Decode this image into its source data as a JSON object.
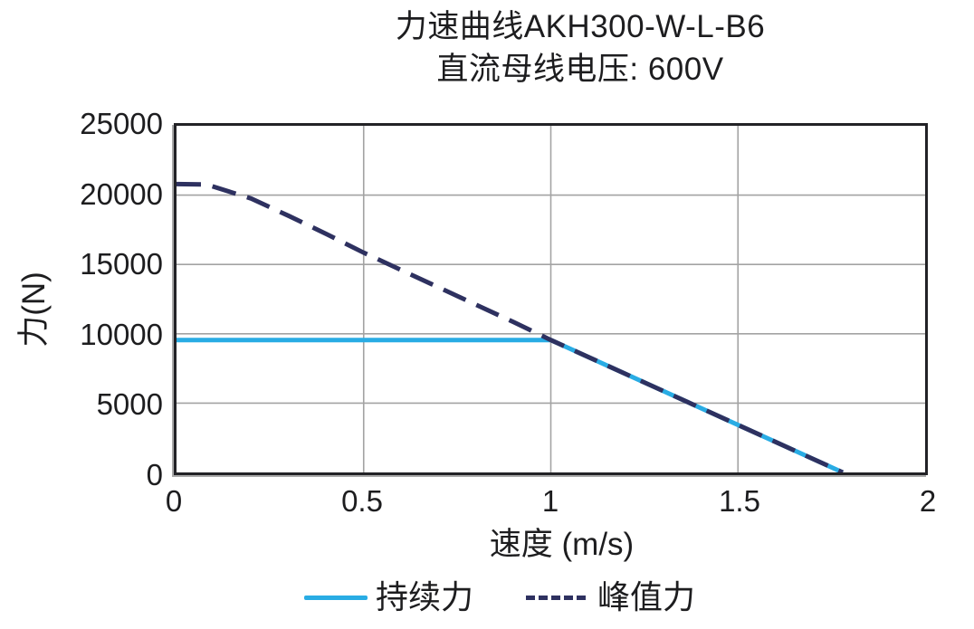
{
  "title": {
    "line1": "力速曲线AKH300-W-L-B6",
    "line2": "直流母线电压: 600V"
  },
  "axes": {
    "x": {
      "label": "速度 (m/s)",
      "tick_labels": [
        "0",
        "0.5",
        "1",
        "1.5",
        "2"
      ],
      "tick_values": [
        0,
        0.5,
        1,
        1.5,
        2
      ],
      "min": 0,
      "max": 2
    },
    "y": {
      "label": "力(N)",
      "tick_labels": [
        "0",
        "5000",
        "10000",
        "15000",
        "20000",
        "25000"
      ],
      "tick_values": [
        0,
        5000,
        10000,
        15000,
        20000,
        25000
      ],
      "min": 0,
      "max": 25000
    }
  },
  "legend": {
    "items": [
      {
        "label": "持续力",
        "color": "#29ace4",
        "style": "solid"
      },
      {
        "label": "峰值力",
        "color": "#2e3160",
        "style": "dashed"
      }
    ]
  },
  "colors": {
    "continuous_force": "#29ace4",
    "peak_force": "#2e3160",
    "gridline": "#a3a3a3",
    "plot_border": "#222226",
    "text": "#1d1d1f"
  },
  "chart_data": {
    "type": "line",
    "title": "力速曲线AKH300-W-L-B6",
    "subtitle": "直流母线电压: 600V",
    "xlabel": "速度 (m/s)",
    "ylabel": "力(N)",
    "xlim": [
      0,
      2
    ],
    "ylim": [
      0,
      25000
    ],
    "grid": true,
    "legend_position": "bottom",
    "series": [
      {
        "name": "持续力",
        "style": "solid",
        "color": "#29ace4",
        "points": [
          [
            0,
            9550
          ],
          [
            1.0,
            9550
          ],
          [
            1.78,
            0
          ]
        ]
      },
      {
        "name": "峰值力",
        "style": "dashed",
        "color": "#2e3160",
        "points": [
          [
            0,
            20800
          ],
          [
            0.08,
            20770
          ],
          [
            0.2,
            19750
          ],
          [
            0.3,
            18500
          ],
          [
            0.4,
            17200
          ],
          [
            0.5,
            15850
          ],
          [
            0.6,
            14600
          ],
          [
            0.7,
            13350
          ],
          [
            0.8,
            12100
          ],
          [
            0.9,
            10850
          ],
          [
            1.0,
            9550
          ],
          [
            1.78,
            0
          ]
        ]
      }
    ]
  }
}
